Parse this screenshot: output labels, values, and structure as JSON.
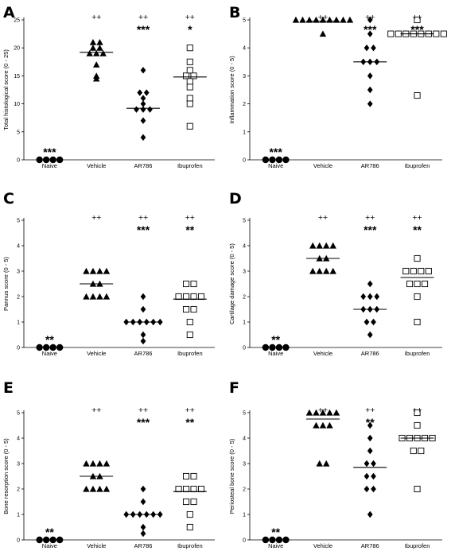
{
  "chart_data": [
    {
      "type": "scatter",
      "panel_label": "A",
      "ylabel": "Total histological score (0 - 25)",
      "ylim": [
        0,
        25
      ],
      "yticks": [
        "0",
        "5",
        "10",
        "15",
        "20",
        "25"
      ],
      "categories": [
        "Naive",
        "Vehicle",
        "AR786",
        "Ibuprofen"
      ],
      "markers": [
        "filled-circle",
        "filled-triangle",
        "filled-diamond",
        "open-square"
      ],
      "groups": [
        {
          "category": "Naive",
          "values": [
            0,
            0,
            0,
            0
          ],
          "median": null,
          "stars": "***",
          "plus": ""
        },
        {
          "category": "Vehicle",
          "values": [
            21,
            21,
            20,
            20,
            19,
            19,
            19,
            17,
            15,
            14.5
          ],
          "median": 19.2,
          "stars": "",
          "plus": "++"
        },
        {
          "category": "AR786",
          "values": [
            16,
            12,
            12,
            11,
            10,
            9,
            9,
            9,
            7,
            4
          ],
          "median": 9.2,
          "stars": "***",
          "plus": "++"
        },
        {
          "category": "Ibuprofen",
          "values": [
            20,
            17.5,
            16,
            15,
            15,
            14,
            13,
            11,
            10,
            6
          ],
          "median": 14.8,
          "stars": "*",
          "plus": "++"
        }
      ]
    },
    {
      "type": "scatter",
      "panel_label": "B",
      "ylabel": "Inflammation score (0 - 5)",
      "ylim": [
        0,
        5
      ],
      "yticks": [
        "0",
        "1",
        "2",
        "3",
        "4",
        "5"
      ],
      "categories": [
        "Naive",
        "Vehicle",
        "AR786",
        "Ibuprofen"
      ],
      "markers": [
        "filled-circle",
        "filled-triangle",
        "filled-diamond",
        "open-square"
      ],
      "groups": [
        {
          "category": "Naive",
          "values": [
            0,
            0,
            0,
            0
          ],
          "median": null,
          "stars": "***",
          "plus": ""
        },
        {
          "category": "Vehicle",
          "values": [
            5,
            5,
            5,
            5,
            5,
            5,
            5,
            5,
            5,
            4.5
          ],
          "median": 4.95,
          "stars": "",
          "plus": "++"
        },
        {
          "category": "AR786",
          "values": [
            5,
            4.5,
            4,
            4,
            3.5,
            3.5,
            3.5,
            3,
            2.5,
            2
          ],
          "median": 3.5,
          "stars": "***",
          "plus": "++"
        },
        {
          "category": "Ibuprofen",
          "values": [
            5,
            4.5,
            4.5,
            4.5,
            4.5,
            4.5,
            4.5,
            4.5,
            4.5,
            2.3
          ],
          "median": 4.5,
          "stars": "***",
          "plus": "++"
        }
      ]
    },
    {
      "type": "scatter",
      "panel_label": "C",
      "ylabel": "Pannus score (0 - 5)",
      "ylim": [
        0,
        5
      ],
      "yticks": [
        "0",
        "1",
        "2",
        "3",
        "4",
        "5"
      ],
      "categories": [
        "Naive",
        "Vehicle",
        "AR786",
        "Ibuprofen"
      ],
      "markers": [
        "filled-circle",
        "filled-triangle",
        "filled-diamond",
        "open-square"
      ],
      "groups": [
        {
          "category": "Naive",
          "values": [
            0,
            0,
            0,
            0
          ],
          "median": null,
          "stars": "**",
          "plus": ""
        },
        {
          "category": "Vehicle",
          "values": [
            3,
            3,
            3,
            3,
            2.5,
            2.5,
            2,
            2,
            2,
            2
          ],
          "median": 2.5,
          "stars": "",
          "plus": "++"
        },
        {
          "category": "AR786",
          "values": [
            2,
            1.5,
            1,
            1,
            1,
            1,
            1,
            1,
            0.5,
            0.25
          ],
          "median": 1.0,
          "stars": "***",
          "plus": "++"
        },
        {
          "category": "Ibuprofen",
          "values": [
            2.5,
            2.5,
            2,
            2,
            2,
            2,
            1.5,
            1.5,
            1,
            0.5
          ],
          "median": 1.9,
          "stars": "**",
          "plus": "++"
        }
      ]
    },
    {
      "type": "scatter",
      "panel_label": "D",
      "ylabel": "Cartilage damage score (0 - 5)",
      "ylim": [
        0,
        5
      ],
      "yticks": [
        "0",
        "1",
        "2",
        "3",
        "4",
        "5"
      ],
      "categories": [
        "Naive",
        "Vehicle",
        "AR786",
        "Ibuprofen"
      ],
      "markers": [
        "filled-circle",
        "filled-triangle",
        "filled-diamond",
        "open-square"
      ],
      "groups": [
        {
          "category": "Naive",
          "values": [
            0,
            0,
            0,
            0
          ],
          "median": null,
          "stars": "**",
          "plus": ""
        },
        {
          "category": "Vehicle",
          "values": [
            4,
            4,
            4,
            4,
            3.5,
            3.5,
            3,
            3,
            3,
            3
          ],
          "median": 3.5,
          "stars": "",
          "plus": "++"
        },
        {
          "category": "AR786",
          "values": [
            2.5,
            2,
            2,
            2,
            1.5,
            1.5,
            1.5,
            1,
            1,
            0.5
          ],
          "median": 1.5,
          "stars": "***",
          "plus": "++"
        },
        {
          "category": "Ibuprofen",
          "values": [
            3.5,
            3,
            3,
            3,
            3,
            2.5,
            2.5,
            2.5,
            2,
            1
          ],
          "median": 2.75,
          "stars": "**",
          "plus": "++"
        }
      ]
    },
    {
      "type": "scatter",
      "panel_label": "E",
      "ylabel": "Bone resorption score (0 - 5)",
      "ylim": [
        0,
        5
      ],
      "yticks": [
        "0",
        "1",
        "2",
        "3",
        "4",
        "5"
      ],
      "categories": [
        "Naive",
        "Vehicle",
        "AR786",
        "Ibuprofen"
      ],
      "markers": [
        "filled-circle",
        "filled-triangle",
        "filled-diamond",
        "open-square"
      ],
      "groups": [
        {
          "category": "Naive",
          "values": [
            0,
            0,
            0,
            0
          ],
          "median": null,
          "stars": "**",
          "plus": ""
        },
        {
          "category": "Vehicle",
          "values": [
            3,
            3,
            3,
            3,
            2.5,
            2.5,
            2,
            2,
            2,
            2
          ],
          "median": 2.5,
          "stars": "",
          "plus": "++"
        },
        {
          "category": "AR786",
          "values": [
            2,
            1.5,
            1,
            1,
            1,
            1,
            1,
            1,
            0.5,
            0.25
          ],
          "median": 1.0,
          "stars": "***",
          "plus": "++"
        },
        {
          "category": "Ibuprofen",
          "values": [
            2.5,
            2.5,
            2,
            2,
            2,
            2,
            1.5,
            1.5,
            1,
            0.5
          ],
          "median": 1.9,
          "stars": "**",
          "plus": "++"
        }
      ]
    },
    {
      "type": "scatter",
      "panel_label": "F",
      "ylabel": "Periosteal bone score (0 - 5)",
      "ylim": [
        0,
        5
      ],
      "yticks": [
        "0",
        "1",
        "2",
        "3",
        "4",
        "5"
      ],
      "categories": [
        "Naive",
        "Vehicle",
        "AR786",
        "Ibuprofen"
      ],
      "markers": [
        "filled-circle",
        "filled-triangle",
        "filled-diamond",
        "open-square"
      ],
      "groups": [
        {
          "category": "Naive",
          "values": [
            0,
            0,
            0,
            0
          ],
          "median": null,
          "stars": "**",
          "plus": ""
        },
        {
          "category": "Vehicle",
          "values": [
            5,
            5,
            5,
            5,
            5,
            4.5,
            4.5,
            4.5,
            3,
            3
          ],
          "median": 4.75,
          "stars": "",
          "plus": "++"
        },
        {
          "category": "AR786",
          "values": [
            4.5,
            4,
            3.5,
            3,
            3,
            2.5,
            2.5,
            2,
            2,
            1
          ],
          "median": 2.85,
          "stars": "**",
          "plus": "++"
        },
        {
          "category": "Ibuprofen",
          "values": [
            5,
            4.5,
            4,
            4,
            4,
            4,
            4,
            3.5,
            3.5,
            2
          ],
          "median": 4.0,
          "stars": "",
          "plus": "++"
        }
      ]
    }
  ]
}
